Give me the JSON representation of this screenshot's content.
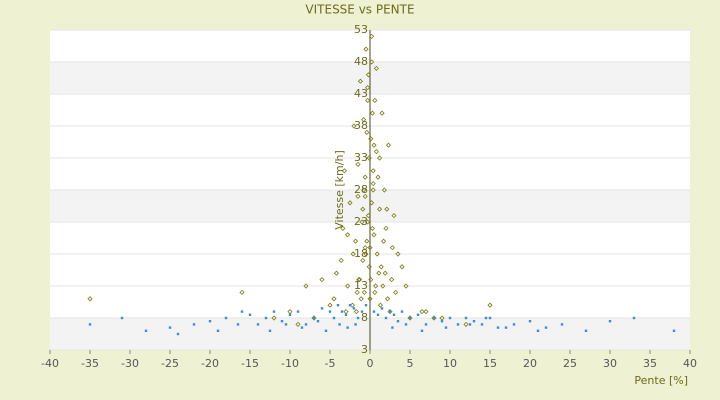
{
  "chart_data": {
    "type": "scatter",
    "title": "VITESSE vs PENTE",
    "x_label": "Pente [%]",
    "y_label": "Vitesse [km/h]",
    "xlim": [
      -40,
      40
    ],
    "xticks": [
      -40,
      -35,
      -30,
      -25,
      -20,
      -15,
      -10,
      -5,
      0,
      5,
      10,
      15,
      20,
      25,
      30,
      35,
      40
    ],
    "ylim": [
      3,
      53
    ],
    "yticks": [
      3,
      8,
      13,
      18,
      23,
      28,
      33,
      38,
      43,
      48,
      53
    ],
    "grid": true,
    "series": [
      {
        "color": "#7a7a10",
        "x": [
          0.2,
          -0.5,
          0.8,
          -1.2,
          1.5,
          -2,
          2.3,
          -0.3,
          0.6,
          -0.8,
          1,
          -1.5,
          1.8,
          -2.5,
          3,
          -3.2,
          0.1,
          -0.1,
          0.4,
          -0.6,
          1.2,
          -1,
          2,
          -1.8,
          2.8,
          -2.8,
          3.5,
          -3.6,
          4,
          -4.2,
          0.3,
          -0.4,
          0.9,
          -0.9,
          1.4,
          -1.4,
          0,
          0.5,
          -0.2,
          0.7,
          -0.7,
          1.1,
          -1.1,
          1.6,
          -1.6,
          2.2,
          -2.2,
          0.2,
          -0.3,
          0.4,
          -0.5,
          0.1,
          -0.1,
          0.6,
          -0.6,
          1.3,
          -1.3,
          -3,
          -4.5,
          5,
          -6,
          6.5,
          -8,
          9,
          -10,
          0.5,
          -0.4,
          0.2,
          -0.2,
          -1.7,
          -2.8,
          3.2,
          2.5,
          -0.9,
          1.7,
          -5,
          4.5,
          -7,
          7,
          -9,
          8,
          -12,
          12,
          0.3,
          -0.3,
          -0.6,
          0.8,
          1.9,
          -2.1,
          -3.4,
          2.7,
          15,
          -16,
          -35,
          0,
          0.4,
          -0.8,
          1.2,
          -1.5,
          2.1
        ],
        "y": [
          52,
          50,
          47,
          45,
          40,
          38,
          35,
          44,
          42,
          39,
          30,
          32,
          28,
          26,
          24,
          31,
          36,
          33,
          29,
          27,
          25,
          23,
          22,
          20,
          19,
          21,
          18,
          17,
          16,
          15,
          22,
          20,
          18,
          17,
          16,
          14,
          19,
          21,
          24,
          13,
          12,
          15,
          11,
          13,
          12,
          11,
          10,
          26,
          23,
          28,
          18,
          14,
          16,
          12,
          19,
          10,
          14,
          9,
          11,
          8,
          14,
          9,
          13,
          8,
          9,
          35,
          37,
          48,
          46,
          9,
          13,
          12,
          9,
          25,
          20,
          10,
          13,
          8,
          9,
          7,
          8,
          8,
          7,
          40,
          42,
          30,
          34,
          15,
          18,
          22,
          14,
          10,
          12,
          11,
          11,
          31,
          28,
          33,
          27,
          25
        ]
      },
      {
        "color": "#3b8bd8",
        "x": [
          -35,
          -31,
          -28,
          -25,
          -22,
          -20,
          -18,
          -16,
          -15,
          -14,
          -13,
          -12,
          -11,
          -10,
          -9,
          -8,
          -7,
          -6,
          -5,
          -4.5,
          -4,
          -3.5,
          -3,
          -2.5,
          -2,
          -1.5,
          -1,
          -0.5,
          0.5,
          1,
          1.5,
          2,
          2.5,
          3,
          3.5,
          4,
          5,
          6,
          7,
          8,
          9,
          10,
          11,
          12,
          13,
          14,
          15,
          16,
          18,
          20,
          22,
          24,
          27,
          30,
          33,
          38,
          -12.5,
          -10.5,
          -8.5,
          -6.5,
          -5.5,
          -3.8,
          -2.8,
          -1.8,
          2.8,
          4.5,
          6.5,
          9.5,
          12.5,
          -24,
          -19,
          17,
          21,
          -16.5,
          14.5
        ],
        "y": [
          7,
          8,
          6,
          6.5,
          7,
          7.5,
          8,
          9,
          8.5,
          7,
          8,
          9,
          7.5,
          8.5,
          9,
          7,
          8,
          9.5,
          9,
          8,
          10,
          9,
          8.5,
          10,
          9.5,
          8,
          9,
          10,
          9,
          8.5,
          9.5,
          8,
          9,
          8.5,
          7.5,
          9,
          8,
          8.5,
          7,
          8,
          7.5,
          8,
          7,
          8,
          7.5,
          7,
          8,
          6.5,
          7,
          7.5,
          6.5,
          7,
          6,
          7.5,
          8,
          6,
          6,
          7,
          6.5,
          7.5,
          6,
          7,
          6.5,
          7,
          6.5,
          7,
          6,
          6.5,
          7,
          5.5,
          6,
          6.5,
          6,
          7,
          8
        ]
      }
    ]
  }
}
